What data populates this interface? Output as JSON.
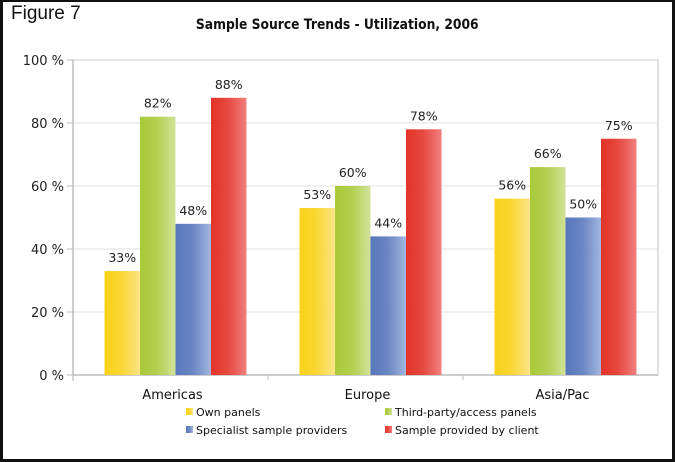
{
  "figure_label": "Figure 7",
  "chart_data": {
    "type": "bar",
    "title": "Sample Source Trends - Utilization, 2006",
    "xlabel": "",
    "ylabel": "",
    "ylim": [
      0,
      100
    ],
    "grid": true,
    "legend_position": "bottom",
    "categories": [
      "Americas",
      "Europe",
      "Asia/Pac"
    ],
    "y_ticks": [
      {
        "value": 0,
        "label": "0 %"
      },
      {
        "value": 20,
        "label": "20 %"
      },
      {
        "value": 40,
        "label": "40 %"
      },
      {
        "value": 60,
        "label": "60 %"
      },
      {
        "value": 80,
        "label": "80 %"
      },
      {
        "value": 100,
        "label": "100 %"
      }
    ],
    "series": [
      {
        "name": "Own panels",
        "values": [
          33,
          53,
          56
        ],
        "labels": [
          "33%",
          "53%",
          "56%"
        ],
        "color_start": "#F9D21A",
        "color_end": "#FDE48A"
      },
      {
        "name": "Third-party/access panels",
        "values": [
          82,
          60,
          66
        ],
        "labels": [
          "82%",
          "60%",
          "66%"
        ],
        "color_start": "#A9CA3A",
        "color_end": "#D3E39A"
      },
      {
        "name": "Specialist sample providers",
        "values": [
          48,
          44,
          50
        ],
        "labels": [
          "48%",
          "44%",
          "50%"
        ],
        "color_start": "#5877BC",
        "color_end": "#A3B6DF"
      },
      {
        "name": "Sample provided by client",
        "values": [
          88,
          78,
          75
        ],
        "labels": [
          "88%",
          "78%",
          "75%"
        ],
        "color_start": "#E33328",
        "color_end": "#F08080"
      }
    ]
  }
}
